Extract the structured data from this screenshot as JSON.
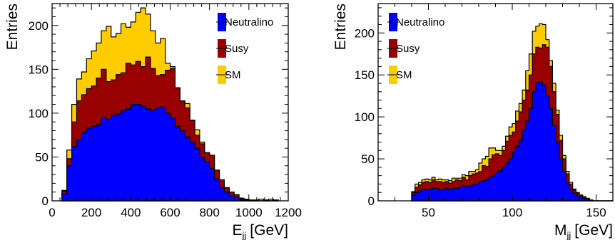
{
  "chart_data": [
    {
      "type": "stacked-histogram",
      "ylabel": "Entries",
      "xlabel_main": "E",
      "xlabel_sub": "jj",
      "xlabel_unit": "[GeV]",
      "xlim": [
        0,
        1200
      ],
      "ylim": [
        0,
        225
      ],
      "xticks": [
        0,
        200,
        400,
        600,
        800,
        1000,
        1200
      ],
      "yticks": [
        0,
        50,
        100,
        150,
        200
      ],
      "legend_position": "top-right",
      "bin_edges": [
        50,
        75,
        100,
        125,
        150,
        175,
        200,
        225,
        250,
        275,
        300,
        325,
        350,
        375,
        400,
        425,
        450,
        475,
        500,
        525,
        550,
        575,
        600,
        625,
        650,
        675,
        700,
        725,
        750,
        775,
        800,
        825,
        850,
        875,
        900,
        925,
        950,
        975,
        1000,
        1025,
        1050,
        1075,
        1100,
        1125,
        1150
      ],
      "series": [
        {
          "name": "Neutralino",
          "color": "#0000ff",
          "values": [
            8,
            40,
            62,
            70,
            78,
            83,
            85,
            87,
            95,
            93,
            98,
            99,
            103,
            105,
            110,
            110,
            108,
            105,
            103,
            106,
            107,
            100,
            95,
            85,
            80,
            73,
            67,
            60,
            50,
            45,
            37,
            25,
            15,
            10,
            6,
            4,
            2,
            1,
            0,
            0,
            0,
            0,
            0,
            0
          ]
        },
        {
          "name": "Susy",
          "color": "#990000",
          "values": [
            3,
            8,
            28,
            44,
            43,
            45,
            46,
            53,
            55,
            43,
            40,
            45,
            43,
            52,
            45,
            49,
            45,
            59,
            48,
            37,
            37,
            49,
            56,
            44,
            34,
            33,
            25,
            15,
            15,
            10,
            15,
            10,
            9,
            5,
            4,
            3,
            1,
            1,
            0,
            0,
            0,
            0,
            0,
            0
          ]
        },
        {
          "name": "SM",
          "color": "#ffcc00",
          "values": [
            1,
            10,
            20,
            25,
            26,
            34,
            40,
            40,
            44,
            63,
            49,
            47,
            56,
            41,
            49,
            56,
            67,
            49,
            43,
            37,
            41,
            8,
            2,
            0,
            0,
            5,
            0,
            6,
            2,
            0,
            0,
            0,
            0,
            0,
            0,
            0,
            0,
            0,
            1,
            1,
            2,
            1,
            2,
            1
          ]
        }
      ]
    },
    {
      "type": "stacked-histogram",
      "ylabel": "Entries",
      "xlabel_main": "M",
      "xlabel_sub": "jj",
      "xlabel_unit": "[GeV]",
      "xlim": [
        20,
        160
      ],
      "ylim": [
        0,
        235
      ],
      "xticks": [
        50,
        100,
        150
      ],
      "yticks": [
        0,
        50,
        100,
        150,
        200
      ],
      "legend_position": "top-left",
      "bin_edges": [
        40,
        42,
        44,
        46,
        48,
        50,
        52,
        54,
        56,
        58,
        60,
        62,
        64,
        66,
        68,
        70,
        72,
        74,
        76,
        78,
        80,
        82,
        84,
        86,
        88,
        90,
        92,
        94,
        96,
        98,
        100,
        102,
        104,
        106,
        108,
        110,
        112,
        114,
        116,
        118,
        120,
        122,
        124,
        126,
        128,
        130,
        132,
        134,
        136,
        138,
        140,
        142,
        144,
        146,
        148,
        150,
        152,
        154,
        156,
        158,
        160
      ],
      "series": [
        {
          "name": "Neutralino",
          "color": "#0000ff",
          "values": [
            7,
            10,
            12,
            14,
            13,
            14,
            15,
            15,
            13,
            14,
            15,
            14,
            15,
            15,
            16,
            18,
            17,
            18,
            19,
            20,
            23,
            24,
            25,
            28,
            30,
            34,
            36,
            40,
            45,
            50,
            58,
            65,
            72,
            85,
            95,
            110,
            130,
            141,
            142,
            138,
            125,
            110,
            90,
            70,
            50,
            35,
            22,
            14,
            9,
            6,
            4,
            3,
            2,
            1,
            0,
            0,
            0,
            0,
            0,
            0
          ]
        },
        {
          "name": "Susy",
          "color": "#990000",
          "values": [
            3,
            6,
            7,
            8,
            10,
            8,
            10,
            8,
            10,
            8,
            8,
            7,
            8,
            10,
            8,
            10,
            8,
            12,
            13,
            13,
            12,
            18,
            16,
            22,
            25,
            22,
            18,
            20,
            26,
            28,
            24,
            30,
            34,
            35,
            37,
            40,
            45,
            42,
            40,
            48,
            58,
            50,
            40,
            33,
            22,
            15,
            10,
            6,
            4,
            3,
            2,
            1,
            1,
            0,
            0,
            0,
            0,
            0,
            0,
            0
          ]
        },
        {
          "name": "SM",
          "color": "#ffcc00",
          "values": [
            1,
            4,
            3,
            3,
            3,
            3,
            3,
            2,
            3,
            3,
            2,
            3,
            4,
            2,
            3,
            3,
            5,
            5,
            3,
            4,
            10,
            8,
            12,
            13,
            8,
            4,
            6,
            5,
            6,
            10,
            10,
            12,
            10,
            12,
            23,
            25,
            27,
            25,
            29,
            24,
            9,
            7,
            10,
            5,
            6,
            4,
            3,
            2,
            1,
            1,
            1,
            1,
            0,
            0,
            0,
            0,
            0,
            0,
            0,
            0
          ]
        }
      ]
    }
  ]
}
